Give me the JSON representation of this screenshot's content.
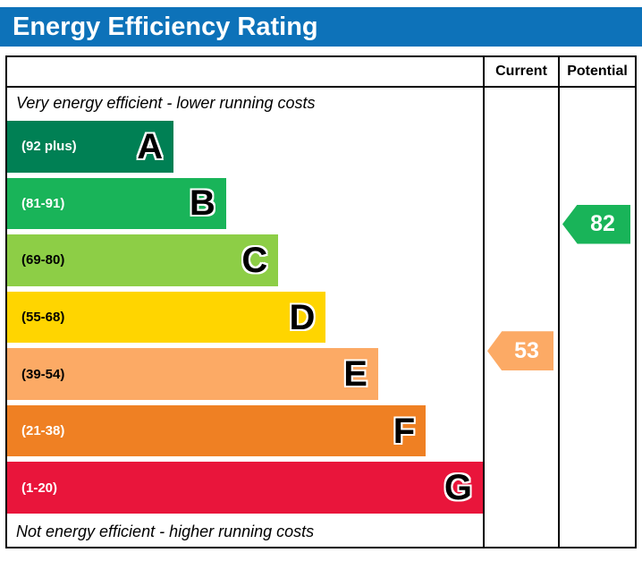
{
  "title": "Energy Efficiency Rating",
  "accent_color": "#0d72b9",
  "columns": {
    "current": "Current",
    "potential": "Potential"
  },
  "notes": {
    "top": "Very energy efficient - lower running costs",
    "bottom": "Not energy efficient - higher running costs"
  },
  "chart_data": {
    "type": "epc-rating-bands",
    "title": "Energy Efficiency Rating",
    "scale": [
      1,
      100
    ],
    "bands": [
      {
        "letter": "A",
        "range_label": "(92 plus)",
        "min": 92,
        "max": 100,
        "color": "#008054",
        "text_color": "#ffffff",
        "width_pct": 35
      },
      {
        "letter": "B",
        "range_label": "(81-91)",
        "min": 81,
        "max": 91,
        "color": "#19b459",
        "text_color": "#ffffff",
        "width_pct": 46
      },
      {
        "letter": "C",
        "range_label": "(69-80)",
        "min": 69,
        "max": 80,
        "color": "#8dce46",
        "text_color": "#000000",
        "width_pct": 57
      },
      {
        "letter": "D",
        "range_label": "(55-68)",
        "min": 55,
        "max": 68,
        "color": "#ffd500",
        "text_color": "#000000",
        "width_pct": 67
      },
      {
        "letter": "E",
        "range_label": "(39-54)",
        "min": 39,
        "max": 54,
        "color": "#fcaa65",
        "text_color": "#000000",
        "width_pct": 78
      },
      {
        "letter": "F",
        "range_label": "(21-38)",
        "min": 21,
        "max": 38,
        "color": "#ef8023",
        "text_color": "#ffffff",
        "width_pct": 88
      },
      {
        "letter": "G",
        "range_label": "(1-20)",
        "min": 1,
        "max": 20,
        "color": "#e9153b",
        "text_color": "#ffffff",
        "width_pct": 100
      }
    ],
    "current": {
      "value": 53,
      "band": "E",
      "color": "#fcaa65"
    },
    "potential": {
      "value": 82,
      "band": "B",
      "color": "#19b459"
    }
  }
}
